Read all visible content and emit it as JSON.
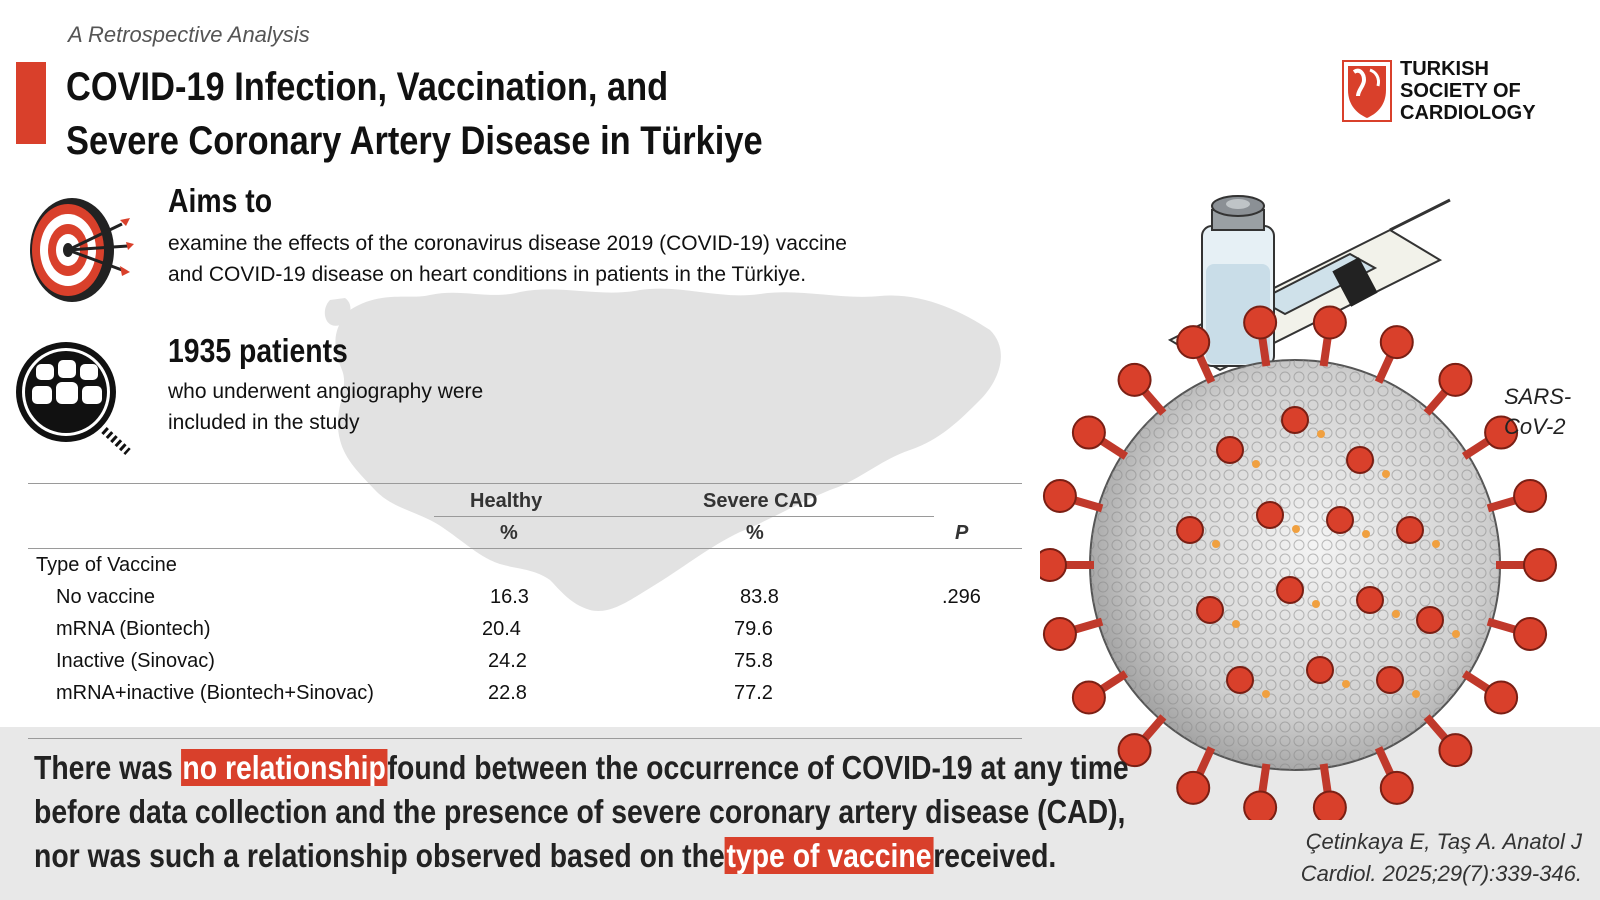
{
  "header": {
    "subtitle": "A Retrospective Analysis",
    "title_line1": "COVID-19 Infection, Vaccination, and",
    "title_line2": "Severe Coronary Artery Disease in Türkiye"
  },
  "logo": {
    "line1": "TURKISH",
    "line2": "SOCIETY OF",
    "line3": "CARDIOLOGY"
  },
  "aims": {
    "heading": "Aims to",
    "line1": "examine the effects of the coronavirus disease 2019 (COVID-19) vaccine",
    "line2": "and COVID-19 disease on heart conditions in patients in the Türkiye."
  },
  "patients": {
    "heading": "1935 patients",
    "line1": "who underwent angiography were",
    "line2": "included in the study"
  },
  "table": {
    "col_healthy": "Healthy",
    "col_severe": "Severe CAD",
    "unit_healthy": "%",
    "unit_severe": "%",
    "col_p": "P",
    "group_label": "Type of Vaccine",
    "rows": [
      {
        "label": "No vaccine",
        "healthy": "16.3",
        "severe": "83.8",
        "p": ".296"
      },
      {
        "label": "mRNA (Biontech)",
        "healthy": "20.4",
        "severe": "79.6",
        "p": ""
      },
      {
        "label": "Inactive (Sinovac)",
        "healthy": "24.2",
        "severe": "75.8",
        "p": ""
      },
      {
        "label": "mRNA+inactive (Biontech+Sinovac)",
        "healthy": "22.8",
        "severe": "77.2",
        "p": ""
      }
    ]
  },
  "virus_label": {
    "line1": "SARS-",
    "line2": "CoV-2"
  },
  "conclusion": {
    "l1_pre": "There was ",
    "l1_hl": "no relationship",
    "l1_post": "found between the occurrence of COVID-19 at any time",
    "l2": "before data collection and the presence of severe coronary artery disease (CAD),",
    "l3_pre": "nor was such a relationship observed based on the",
    "l3_hl": "type of vaccine",
    "l3_post": "received."
  },
  "citation": {
    "line1": "Çetinkaya E, Taş A. Anatol J",
    "line2": "Cardiol. 2025;29(7):339-346."
  },
  "colors": {
    "accent_red": "#d9402b",
    "map_gray": "#e2e2e2",
    "band_gray": "#e8e8e8"
  },
  "icons": [
    "target-icon",
    "patients-group-icon",
    "turkey-map",
    "vaccine-vial-icon",
    "syringe-icon",
    "coronavirus-illustration",
    "tsc-logo-icon"
  ]
}
